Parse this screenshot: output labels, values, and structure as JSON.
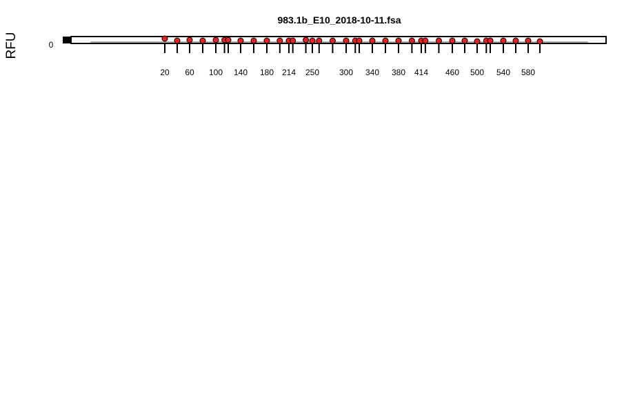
{
  "chart_data": {
    "type": "scatter",
    "title": "983.1b_E10_2018-10-11.fsa",
    "ylabel": "RFU",
    "ytick_labels": [
      "0"
    ],
    "x_tick_labels": [
      "20",
      "60",
      "100",
      "140",
      "180",
      "214",
      "250",
      "300",
      "340",
      "380",
      "414",
      "460",
      "500",
      "540",
      "580"
    ],
    "ladder_sizes": [
      20,
      40,
      60,
      80,
      100,
      114,
      120,
      140,
      160,
      180,
      200,
      214,
      220,
      240,
      250,
      260,
      280,
      300,
      314,
      320,
      340,
      360,
      380,
      400,
      414,
      420,
      440,
      460,
      480,
      500,
      514,
      520,
      540,
      560,
      580,
      600
    ],
    "peak_rfu": [
      4,
      1,
      2,
      1,
      2,
      2,
      2,
      1,
      1,
      1,
      1,
      1,
      1,
      2,
      1,
      1,
      1,
      1,
      1,
      1,
      1,
      1,
      1,
      1,
      1,
      1,
      1,
      1,
      1,
      0,
      1,
      1,
      1,
      1,
      1,
      0
    ],
    "x_tick_sizes": [
      20,
      60,
      100,
      140,
      180,
      214,
      250,
      300,
      340,
      380,
      414,
      460,
      500,
      540,
      580
    ],
    "colors": {
      "peak": "#e32222",
      "trace": "#a0a0a0",
      "frame": "#000000"
    }
  }
}
